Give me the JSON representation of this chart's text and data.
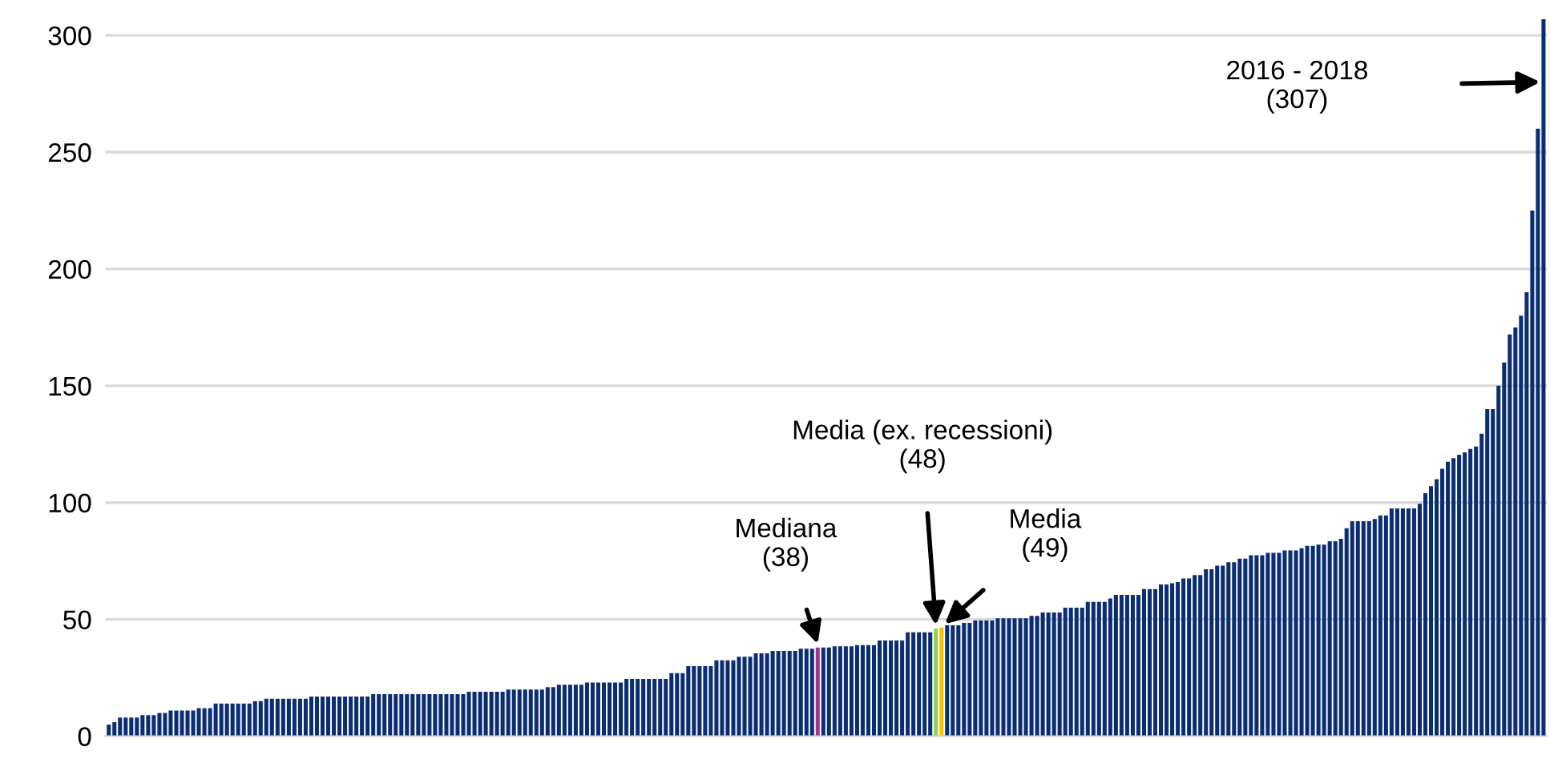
{
  "chart_data": {
    "type": "bar",
    "grid": "y",
    "ylim": [
      0,
      307
    ],
    "yticks": [
      0,
      50,
      100,
      150,
      200,
      250,
      300
    ],
    "categories": [
      null,
      null,
      null,
      null,
      null,
      null,
      null,
      null,
      null,
      null,
      null,
      null,
      null,
      null,
      null,
      null,
      null,
      null,
      null,
      null,
      null,
      null,
      null,
      null,
      null,
      null,
      null,
      null,
      null,
      null,
      null,
      null,
      null,
      null,
      null,
      null,
      null,
      null,
      null,
      null,
      null,
      null,
      null,
      null,
      null,
      null,
      null,
      null,
      null,
      null,
      null,
      null,
      null,
      null,
      null,
      null,
      null,
      null,
      null,
      null,
      null,
      null,
      null,
      null,
      null,
      null,
      null,
      null,
      null,
      null,
      null,
      null,
      null,
      null,
      null,
      null,
      null,
      null,
      null,
      null,
      null,
      null,
      null,
      null,
      null,
      null,
      null,
      null,
      null,
      null,
      null,
      null,
      null,
      null,
      null,
      null,
      null,
      null,
      null,
      null,
      null,
      null,
      null,
      null,
      null,
      null,
      null,
      null,
      null,
      null,
      null,
      null,
      null,
      null,
      null,
      null,
      null,
      null,
      null,
      null,
      null,
      null,
      null,
      null,
      null,
      null,
      null,
      null,
      null,
      null,
      null,
      null,
      null,
      null,
      null,
      null,
      null,
      null,
      null,
      null,
      null,
      null,
      null,
      null,
      null,
      null,
      null,
      null,
      null,
      null,
      null,
      null,
      null,
      null,
      null,
      null,
      null,
      null,
      null,
      null,
      null,
      null,
      null,
      null,
      null,
      null,
      null,
      null,
      null,
      null,
      null,
      null,
      null,
      null,
      null,
      null,
      null,
      null,
      null,
      null,
      null,
      null,
      null,
      null,
      null,
      null,
      null,
      null,
      null,
      null,
      null,
      null,
      null,
      null,
      null,
      null,
      null,
      null,
      null,
      null,
      null,
      null,
      null,
      null,
      null,
      null,
      null,
      null,
      null,
      null,
      null,
      null,
      null,
      null,
      null,
      null,
      null,
      null,
      null,
      null,
      null,
      null,
      null,
      null,
      null,
      null,
      null,
      null,
      null,
      null,
      null,
      null,
      null,
      null,
      null,
      null,
      null,
      null,
      null,
      null,
      null,
      null,
      null,
      null,
      null,
      null,
      null,
      null,
      null,
      null,
      null,
      null,
      null,
      null,
      null,
      null
    ],
    "values": [
      5,
      6,
      8,
      8,
      8,
      8,
      9,
      9,
      9,
      10,
      10,
      11,
      11,
      11,
      11,
      11,
      12,
      12,
      12,
      14,
      14,
      14,
      14,
      14,
      14,
      14,
      15,
      15,
      16,
      16,
      16,
      16,
      16,
      16,
      16,
      16,
      17,
      17,
      17,
      17,
      17,
      17,
      17,
      17,
      17,
      17,
      17,
      18,
      18,
      18,
      18,
      18,
      18,
      18,
      18,
      18,
      18,
      18,
      18,
      18,
      18,
      18,
      18,
      18,
      19,
      19,
      19,
      19,
      19,
      19,
      19,
      20,
      20,
      20,
      20,
      20,
      20,
      20,
      21,
      21,
      22,
      22,
      22,
      22,
      22,
      23,
      23,
      23,
      23,
      23,
      23,
      23,
      24.5,
      24.5,
      24.5,
      24.5,
      24.5,
      24.5,
      24.5,
      24.5,
      27,
      27,
      27,
      30,
      30,
      30,
      30,
      30,
      32.5,
      32.5,
      32.5,
      32.5,
      34,
      34,
      34,
      35.5,
      35.5,
      35.5,
      36.5,
      36.5,
      36.5,
      36.5,
      36.5,
      37.5,
      37.5,
      37.5,
      38,
      38,
      38,
      38.5,
      38.5,
      38.5,
      38.5,
      39,
      39,
      39,
      39,
      41,
      41,
      41,
      41,
      41,
      44.5,
      44.5,
      44.5,
      44.5,
      44.5,
      46,
      46.5,
      47.5,
      47.5,
      47.5,
      48.5,
      48.5,
      49.5,
      49.5,
      49.5,
      49.5,
      50.5,
      50.5,
      50.5,
      50.5,
      50.5,
      50.5,
      51.5,
      51.5,
      53,
      53,
      53,
      53,
      55,
      55,
      55,
      55,
      57.5,
      57.5,
      57.5,
      57.5,
      59,
      60.5,
      60.5,
      60.5,
      60.5,
      60.5,
      63,
      63,
      63,
      65,
      65,
      65.5,
      66,
      67.5,
      67.5,
      69,
      69,
      71.5,
      71.5,
      73,
      73,
      74.5,
      74.5,
      76,
      76,
      77.5,
      77.5,
      77.5,
      78.5,
      78.5,
      78.5,
      79.5,
      79.5,
      79.5,
      80.5,
      81.5,
      81.5,
      82,
      82,
      83.5,
      83.5,
      84.5,
      89,
      92,
      92,
      92,
      92,
      93,
      94.5,
      94.5,
      97.5,
      97.5,
      97.5,
      97.5,
      97.5,
      99.5,
      104,
      107,
      110,
      114.5,
      117.5,
      119,
      120.5,
      121.5,
      123,
      124,
      129.5,
      140,
      140,
      150,
      160,
      172,
      175,
      180,
      190,
      225,
      260,
      307
    ],
    "colors": [
      "#0b2d72",
      "#0b2d72",
      "#0b2d72",
      "#0b2d72",
      "#0b2d72",
      "#0b2d72",
      "#0b2d72",
      "#0b2d72",
      "#0b2d72",
      "#0b2d72",
      "#0b2d72",
      "#0b2d72",
      "#0b2d72",
      "#0b2d72",
      "#0b2d72",
      "#0b2d72",
      "#0b2d72",
      "#0b2d72",
      "#0b2d72",
      "#0b2d72",
      "#0b2d72",
      "#0b2d72",
      "#0b2d72",
      "#0b2d72",
      "#0b2d72",
      "#0b2d72",
      "#0b2d72",
      "#0b2d72",
      "#0b2d72",
      "#0b2d72",
      "#0b2d72",
      "#0b2d72",
      "#0b2d72",
      "#0b2d72",
      "#0b2d72",
      "#0b2d72",
      "#0b2d72",
      "#0b2d72",
      "#0b2d72",
      "#0b2d72",
      "#0b2d72",
      "#0b2d72",
      "#0b2d72",
      "#0b2d72",
      "#0b2d72",
      "#0b2d72",
      "#0b2d72",
      "#0b2d72",
      "#0b2d72",
      "#0b2d72",
      "#0b2d72",
      "#0b2d72",
      "#0b2d72",
      "#0b2d72",
      "#0b2d72",
      "#0b2d72",
      "#0b2d72",
      "#0b2d72",
      "#0b2d72",
      "#0b2d72",
      "#0b2d72",
      "#0b2d72",
      "#0b2d72",
      "#0b2d72",
      "#0b2d72",
      "#0b2d72",
      "#0b2d72",
      "#0b2d72",
      "#0b2d72",
      "#0b2d72",
      "#0b2d72",
      "#0b2d72",
      "#0b2d72",
      "#0b2d72",
      "#0b2d72",
      "#0b2d72",
      "#0b2d72",
      "#0b2d72",
      "#0b2d72",
      "#0b2d72",
      "#0b2d72",
      "#0b2d72",
      "#0b2d72",
      "#0b2d72",
      "#0b2d72",
      "#0b2d72",
      "#0b2d72",
      "#0b2d72",
      "#0b2d72",
      "#0b2d72",
      "#0b2d72",
      "#0b2d72",
      "#0b2d72",
      "#0b2d72",
      "#0b2d72",
      "#0b2d72",
      "#0b2d72",
      "#0b2d72",
      "#0b2d72",
      "#0b2d72",
      "#0b2d72",
      "#0b2d72",
      "#0b2d72",
      "#0b2d72",
      "#0b2d72",
      "#0b2d72",
      "#0b2d72",
      "#0b2d72",
      "#0b2d72",
      "#0b2d72",
      "#0b2d72",
      "#0b2d72",
      "#0b2d72",
      "#0b2d72",
      "#0b2d72",
      "#0b2d72",
      "#0b2d72",
      "#0b2d72",
      "#0b2d72",
      "#0b2d72",
      "#0b2d72",
      "#0b2d72",
      "#0b2d72",
      "#0b2d72",
      "#0b2d72",
      "#0b2d72",
      "#a0378f",
      "#0b2d72",
      "#0b2d72",
      "#0b2d72",
      "#0b2d72",
      "#0b2d72",
      "#0b2d72",
      "#0b2d72",
      "#0b2d72",
      "#0b2d72",
      "#0b2d72",
      "#0b2d72",
      "#0b2d72",
      "#0b2d72",
      "#0b2d72",
      "#0b2d72",
      "#0b2d72",
      "#0b2d72",
      "#0b2d72",
      "#0b2d72",
      "#0b2d72",
      "#92d050",
      "#ffc000",
      "#0b2d72",
      "#0b2d72",
      "#0b2d72",
      "#0b2d72",
      "#0b2d72",
      "#0b2d72",
      "#0b2d72",
      "#0b2d72",
      "#0b2d72",
      "#0b2d72",
      "#0b2d72",
      "#0b2d72",
      "#0b2d72",
      "#0b2d72",
      "#0b2d72",
      "#0b2d72",
      "#0b2d72",
      "#0b2d72",
      "#0b2d72",
      "#0b2d72",
      "#0b2d72",
      "#0b2d72",
      "#0b2d72",
      "#0b2d72",
      "#0b2d72",
      "#0b2d72",
      "#0b2d72",
      "#0b2d72",
      "#0b2d72",
      "#0b2d72",
      "#0b2d72",
      "#0b2d72",
      "#0b2d72",
      "#0b2d72",
      "#0b2d72",
      "#0b2d72",
      "#0b2d72",
      "#0b2d72",
      "#0b2d72",
      "#0b2d72",
      "#0b2d72",
      "#0b2d72",
      "#0b2d72",
      "#0b2d72",
      "#0b2d72",
      "#0b2d72",
      "#0b2d72",
      "#0b2d72",
      "#0b2d72",
      "#0b2d72",
      "#0b2d72",
      "#0b2d72",
      "#0b2d72",
      "#0b2d72",
      "#0b2d72",
      "#0b2d72",
      "#0b2d72",
      "#0b2d72",
      "#0b2d72",
      "#0b2d72",
      "#0b2d72",
      "#0b2d72",
      "#0b2d72",
      "#0b2d72",
      "#0b2d72",
      "#0b2d72",
      "#0b2d72",
      "#0b2d72",
      "#0b2d72",
      "#0b2d72",
      "#0b2d72",
      "#0b2d72",
      "#0b2d72",
      "#0b2d72",
      "#0b2d72",
      "#0b2d72",
      "#0b2d72",
      "#0b2d72",
      "#0b2d72",
      "#0b2d72",
      "#0b2d72",
      "#0b2d72",
      "#0b2d72",
      "#0b2d72",
      "#0b2d72",
      "#0b2d72",
      "#0b2d72",
      "#0b2d72",
      "#0b2d72",
      "#0b2d72",
      "#0b2d72",
      "#0b2d72",
      "#0b2d72",
      "#0b2d72",
      "#0b2d72",
      "#0b2d72",
      "#0b2d72",
      "#0b2d72",
      "#0b2d72",
      "#0b2d72",
      "#0b2d72",
      "#0b2d72",
      "#0b2d72",
      "#0b2d72",
      "#0b2d72",
      "#0b2d72",
      "#0b2d72"
    ],
    "annotations": [
      "2016 - 2018\n(307)",
      "Mediana\n(38)",
      "Media (ex. recessioni)\n(48)",
      "Media\n(49)"
    ]
  }
}
